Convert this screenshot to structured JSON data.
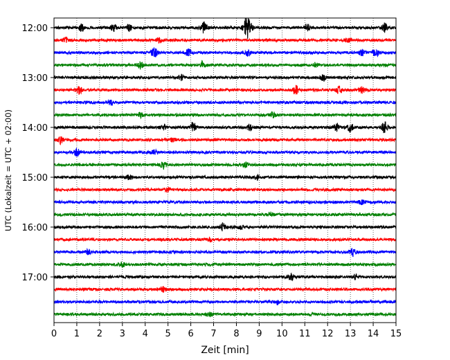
{
  "chart_data": {
    "type": "line",
    "title": "",
    "xlabel": "Zeit  [min]",
    "ylabel": "UTC (Lokalzeit = UTC + 02:00)",
    "xlim": [
      0,
      15
    ],
    "x_ticks": [
      "0",
      "1",
      "2",
      "3",
      "4",
      "5",
      "6",
      "7",
      "8",
      "9",
      "10",
      "11",
      "12",
      "13",
      "14",
      "15"
    ],
    "y_ticks": [
      "12:00",
      "13:00",
      "14:00",
      "15:00",
      "16:00",
      "17:00"
    ],
    "grid": "vertical dotted",
    "trace_colors": [
      "#000000",
      "#ff0000",
      "#0000ff",
      "#008000"
    ],
    "traces": [
      {
        "start": "12:00",
        "color": "#000000",
        "events": [
          [
            1.2,
            5
          ],
          [
            2.6,
            4
          ],
          [
            3.3,
            4
          ],
          [
            6.6,
            8
          ],
          [
            8.4,
            10
          ],
          [
            8.55,
            12
          ],
          [
            11.1,
            5
          ],
          [
            14.5,
            6
          ]
        ]
      },
      {
        "start": "12:15",
        "color": "#ff0000",
        "events": [
          [
            0.5,
            4
          ],
          [
            4.6,
            3
          ],
          [
            12.9,
            3
          ]
        ]
      },
      {
        "start": "12:30",
        "color": "#0000ff",
        "events": [
          [
            4.4,
            7
          ],
          [
            5.9,
            5
          ],
          [
            8.5,
            4
          ],
          [
            14.1,
            6
          ],
          [
            13.5,
            4
          ]
        ]
      },
      {
        "start": "12:45",
        "color": "#008000",
        "events": [
          [
            3.8,
            5
          ],
          [
            6.5,
            4
          ],
          [
            11.5,
            3
          ]
        ]
      },
      {
        "start": "13:00",
        "color": "#000000",
        "events": [
          [
            5.6,
            4
          ],
          [
            11.8,
            5
          ]
        ]
      },
      {
        "start": "13:15",
        "color": "#ff0000",
        "events": [
          [
            1.1,
            5
          ],
          [
            10.6,
            6
          ],
          [
            12.5,
            6
          ],
          [
            13.5,
            4
          ]
        ]
      },
      {
        "start": "13:30",
        "color": "#0000ff",
        "events": [
          [
            2.5,
            3
          ]
        ]
      },
      {
        "start": "13:45",
        "color": "#008000",
        "events": [
          [
            3.8,
            3
          ],
          [
            9.6,
            3
          ]
        ]
      },
      {
        "start": "14:00",
        "color": "#000000",
        "events": [
          [
            4.8,
            4
          ],
          [
            6.1,
            7
          ],
          [
            8.6,
            4
          ],
          [
            12.4,
            5
          ],
          [
            13.0,
            6
          ],
          [
            14.5,
            8
          ]
        ]
      },
      {
        "start": "14:15",
        "color": "#ff0000",
        "events": [
          [
            0.3,
            5
          ],
          [
            5.2,
            3
          ]
        ]
      },
      {
        "start": "14:30",
        "color": "#0000ff",
        "events": [
          [
            1.0,
            5
          ],
          [
            4.4,
            3
          ]
        ]
      },
      {
        "start": "14:45",
        "color": "#008000",
        "events": [
          [
            4.8,
            5
          ],
          [
            8.4,
            3
          ]
        ]
      },
      {
        "start": "15:00",
        "color": "#000000",
        "events": [
          [
            3.3,
            3
          ],
          [
            8.9,
            3
          ]
        ]
      },
      {
        "start": "15:15",
        "color": "#ff0000",
        "events": [
          [
            5.0,
            3
          ]
        ]
      },
      {
        "start": "15:30",
        "color": "#0000ff",
        "events": [
          [
            13.5,
            3
          ]
        ]
      },
      {
        "start": "15:45",
        "color": "#008000",
        "events": [
          [
            9.5,
            3
          ]
        ]
      },
      {
        "start": "16:00",
        "color": "#000000",
        "events": [
          [
            7.4,
            5
          ],
          [
            8.2,
            3
          ]
        ]
      },
      {
        "start": "16:15",
        "color": "#ff0000",
        "events": [
          [
            6.8,
            3
          ]
        ]
      },
      {
        "start": "16:30",
        "color": "#0000ff",
        "events": [
          [
            1.5,
            3
          ],
          [
            13.1,
            5
          ]
        ]
      },
      {
        "start": "16:45",
        "color": "#008000",
        "events": [
          [
            3.0,
            3
          ]
        ]
      },
      {
        "start": "17:00",
        "color": "#000000",
        "events": [
          [
            10.4,
            4
          ],
          [
            13.2,
            3
          ]
        ]
      },
      {
        "start": "17:15",
        "color": "#ff0000",
        "events": [
          [
            4.8,
            3
          ]
        ]
      },
      {
        "start": "17:30",
        "color": "#0000ff",
        "events": [
          [
            9.8,
            3
          ]
        ]
      },
      {
        "start": "17:45",
        "color": "#008000",
        "events": [
          [
            6.8,
            3
          ]
        ]
      }
    ]
  }
}
